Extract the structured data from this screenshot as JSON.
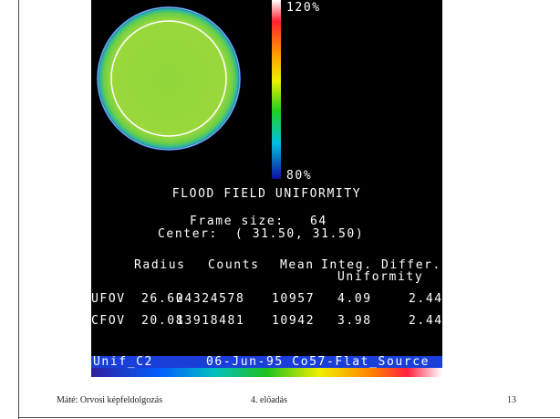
{
  "screen": {
    "scale_max": "120%",
    "scale_min": "80%",
    "title": "FLOOD FIELD UNIFORMITY",
    "frame_size": "Frame size:   64",
    "center": "Center:  ( 31.50, 31.50)",
    "table": {
      "header": [
        "Radius",
        "Counts",
        "Mean",
        "Integ.",
        "Differ."
      ],
      "header2": "Uniformity",
      "rows": [
        [
          "UFOV",
          "26.60",
          "24324578",
          "10957",
          "4.09",
          "2.44"
        ],
        [
          "CFOV",
          "20.08",
          "13918481",
          "10942",
          "3.98",
          "2.44"
        ]
      ]
    },
    "status_left": "Unif_C2",
    "status_right": "06-Jun-95 Co57-Flat_Source"
  },
  "footer": {
    "author": "Máté: Orvosi képfeldolgozás",
    "lecture": "4. előadás",
    "page": "13"
  }
}
